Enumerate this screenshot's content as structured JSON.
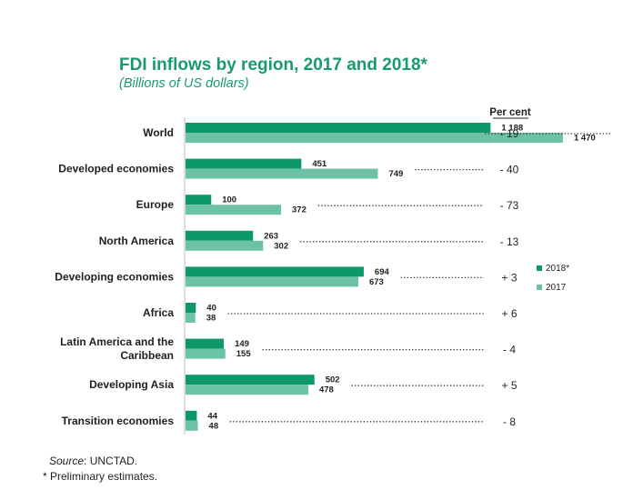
{
  "chart_data": {
    "type": "bar",
    "orientation": "horizontal",
    "title": "FDI inflows by region, 2017 and 2018*",
    "subtitle": "(Billions of US dollars)",
    "categories": [
      "World",
      "Developed economies",
      "Europe",
      "North America",
      "Developing economies",
      "Africa",
      "Latin America and the Caribbean",
      "Developing Asia",
      "Transition economies"
    ],
    "category_lines": [
      [
        "World"
      ],
      [
        "Developed economies"
      ],
      [
        "Europe"
      ],
      [
        "North America"
      ],
      [
        "Developing economies"
      ],
      [
        "Africa"
      ],
      [
        "Latin America and the",
        "Caribbean"
      ],
      [
        "Developing Asia"
      ],
      [
        "Transition economies"
      ]
    ],
    "series": [
      {
        "name": "2018*",
        "color": "#0e9868",
        "values": [
          1188,
          451,
          100,
          263,
          694,
          40,
          149,
          502,
          44
        ],
        "labels": [
          "1 188",
          "451",
          "100",
          "263",
          "694",
          "40",
          "149",
          "502",
          "44"
        ]
      },
      {
        "name": "2017",
        "color": "#6cc3a4",
        "values": [
          1470,
          749,
          372,
          302,
          673,
          38,
          155,
          478,
          48
        ],
        "labels": [
          "1 470",
          "749",
          "372",
          "302",
          "673",
          "38",
          "155",
          "478",
          "48"
        ]
      }
    ],
    "percent_header": "Per cent",
    "percent_change": [
      "- 19",
      "- 40",
      "- 73",
      "- 13",
      "+ 3",
      "+ 6",
      "- 4",
      "+ 5",
      "- 8"
    ],
    "xlim": [
      0,
      1470
    ],
    "legend_position": "right"
  },
  "footnotes": {
    "source_label": "Source",
    "source_text": ": UNCTAD.",
    "note": "* Preliminary estimates."
  }
}
